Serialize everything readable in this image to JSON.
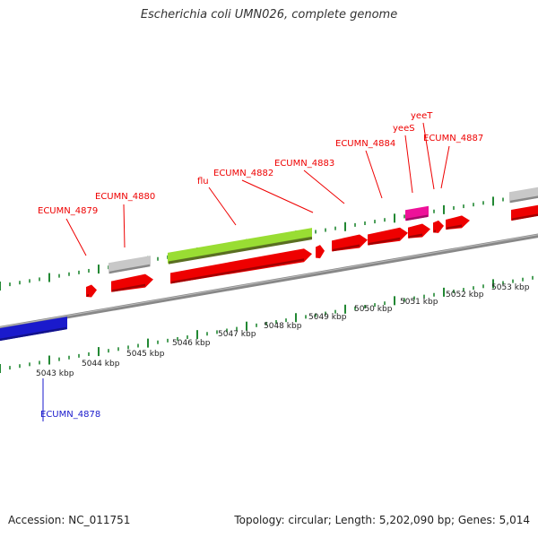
{
  "header": {
    "title": "Escherichia coli UMN026, complete genome"
  },
  "footer": {
    "accession": "Accession: NC_011751",
    "stats": "Topology: circular; Length: 5,202,090 bp; Genes: 5,014"
  },
  "colors": {
    "forward_gene": "#ee0000",
    "reverse_gene": "#1a1acc",
    "pseudo_gene": "#c8c8c8",
    "highlight_gene": "#ee1199",
    "flu_gene": "#99dd33",
    "tick": "#228833",
    "backbone": "#888888",
    "scale_text": "#222222"
  },
  "scale": {
    "labels": [
      "5043 kbp",
      "5044 kbp",
      "5045 kbp",
      "5046 kbp",
      "5047 kbp",
      "5048 kbp",
      "5049 kbp",
      "5050 kbp",
      "5051 kbp",
      "5052 kbp",
      "5053 kbp"
    ]
  },
  "genes": [
    {
      "label": "ECUMN_4878",
      "strand": "reverse"
    },
    {
      "label": "ECUMN_4879",
      "strand": "forward"
    },
    {
      "label": "ECUMN_4880",
      "strand": "forward"
    },
    {
      "label": "flu",
      "strand": "forward"
    },
    {
      "label": "ECUMN_4882",
      "strand": "forward"
    },
    {
      "label": "ECUMN_4883",
      "strand": "forward"
    },
    {
      "label": "ECUMN_4884",
      "strand": "forward"
    },
    {
      "label": "yeeS",
      "strand": "forward"
    },
    {
      "label": "yeeT",
      "strand": "forward"
    },
    {
      "label": "ECUMN_4887",
      "strand": "forward"
    }
  ]
}
